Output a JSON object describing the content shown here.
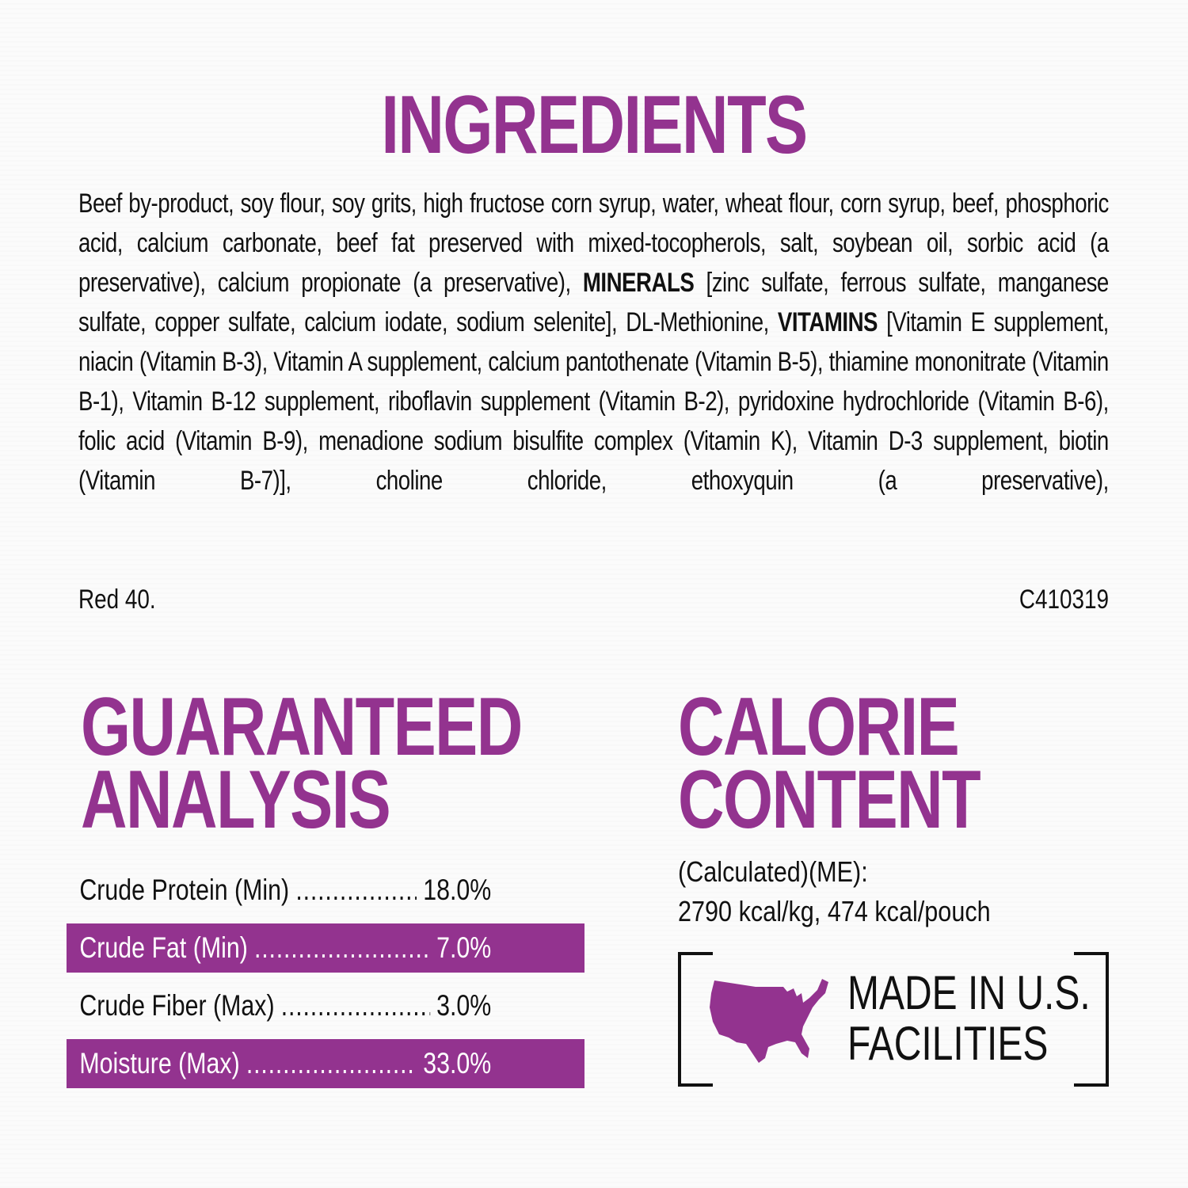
{
  "ingredients": {
    "title": "INGREDIENTS",
    "text_1": "Beef by-product, soy flour, soy grits, high fructose corn syrup, water, wheat flour, corn syrup, beef, phosphoric acid, calcium carbonate, beef fat preserved with mixed-tocopherols, salt, soybean oil, sorbic acid (a preservative), calcium propionate (a preservative), ",
    "minerals_label": "MINERALS",
    "text_2": " [zinc sulfate, ferrous sulfate, manganese sulfate, copper sulfate, calcium iodate, sodium selenite], DL-Methionine, ",
    "vitamins_label": "VITAMINS",
    "text_3": " [Vitamin E supplement, niacin (Vitamin B-3), Vitamin A supplement, calcium pantothenate (Vitamin B-5), thiamine mononitrate (Vitamin B-1), Vitamin B-12 supplement, riboflavin supplement (Vitamin B-2), pyridoxine hydrochloride (Vitamin B-6), folic acid (Vitamin B-9), menadione sodium bisulfite complex (Vitamin K), Vitamin D-3 supplement, biotin (Vitamin B-7)], choline chloride, ethoxyquin (a preservative),",
    "text_end": "Red 40.",
    "code": "C410319"
  },
  "guaranteed_analysis": {
    "title_line1": "GUARANTEED",
    "title_line2": "ANALYSIS",
    "rows": [
      {
        "label": "Crude Protein (Min)",
        "value": "18.0%",
        "highlight": false
      },
      {
        "label": "Crude Fat (Min)",
        "value": "7.0%",
        "highlight": true
      },
      {
        "label": "Crude Fiber (Max)",
        "value": "3.0%",
        "highlight": false
      },
      {
        "label": "Moisture (Max)",
        "value": "33.0%",
        "highlight": true
      }
    ],
    "dots": "............................................................"
  },
  "calorie_content": {
    "title_line1": "CALORIE",
    "title_line2": "CONTENT",
    "line1": "(Calculated)(ME):",
    "line2": "2790 kcal/kg, 474 kcal/pouch"
  },
  "badge": {
    "icon": "usa-map-icon",
    "line1": "MADE IN U.S.",
    "line2": "FACILITIES"
  },
  "colors": {
    "accent": "#93338f",
    "text": "#111111",
    "background": "#fbfbfb"
  }
}
